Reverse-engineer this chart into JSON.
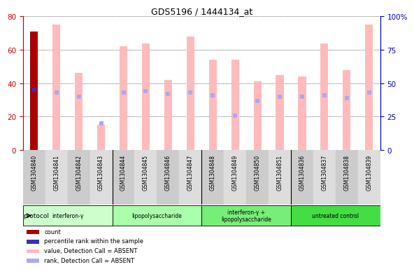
{
  "title": "GDS5196 / 1444134_at",
  "samples": [
    "GSM1304840",
    "GSM1304841",
    "GSM1304842",
    "GSM1304843",
    "GSM1304844",
    "GSM1304845",
    "GSM1304846",
    "GSM1304847",
    "GSM1304848",
    "GSM1304849",
    "GSM1304850",
    "GSM1304851",
    "GSM1304836",
    "GSM1304837",
    "GSM1304838",
    "GSM1304839"
  ],
  "bar_values": [
    71,
    75,
    46,
    15,
    62,
    64,
    42,
    68,
    54,
    54,
    41,
    45,
    44,
    64,
    48,
    75
  ],
  "rank_values": [
    45,
    43,
    40,
    20,
    43,
    44,
    42,
    43,
    41,
    26,
    37,
    40,
    40,
    41,
    39,
    43
  ],
  "bar_colors": [
    "#aa0000",
    "#ffbbbb",
    "#ffbbbb",
    "#ffbbbb",
    "#ffbbbb",
    "#ffbbbb",
    "#ffbbbb",
    "#ffbbbb",
    "#ffbbbb",
    "#ffbbbb",
    "#ffbbbb",
    "#ffbbbb",
    "#ffbbbb",
    "#ffbbbb",
    "#ffbbbb",
    "#ffbbbb"
  ],
  "rank_colors": [
    "#3333bb",
    "#aaaaee",
    "#aaaaee",
    "#aaaaee",
    "#aaaaee",
    "#aaaaee",
    "#aaaaee",
    "#aaaaee",
    "#aaaaee",
    "#aaaaee",
    "#aaaaee",
    "#aaaaee",
    "#aaaaee",
    "#aaaaee",
    "#aaaaee",
    "#aaaaee"
  ],
  "ylim_left": [
    0,
    80
  ],
  "ylim_right": [
    0,
    100
  ],
  "yticks_left": [
    0,
    20,
    40,
    60,
    80
  ],
  "yticks_right": [
    0,
    25,
    50,
    75,
    100
  ],
  "ytick_labels_right": [
    "0",
    "25",
    "50",
    "75",
    "100%"
  ],
  "groups": [
    {
      "label": "interferon-γ",
      "start": 0,
      "end": 4,
      "color": "#ccffcc"
    },
    {
      "label": "lipopolysaccharide",
      "start": 4,
      "end": 8,
      "color": "#aaffaa"
    },
    {
      "label": "interferon-γ +\nlipopolysaccharide",
      "start": 8,
      "end": 12,
      "color": "#77ee77"
    },
    {
      "label": "untreated control",
      "start": 12,
      "end": 16,
      "color": "#44dd44"
    }
  ],
  "left_axis_color": "#cc0000",
  "right_axis_color": "#0000cc",
  "background_color": "#ffffff",
  "bar_width": 0.35
}
